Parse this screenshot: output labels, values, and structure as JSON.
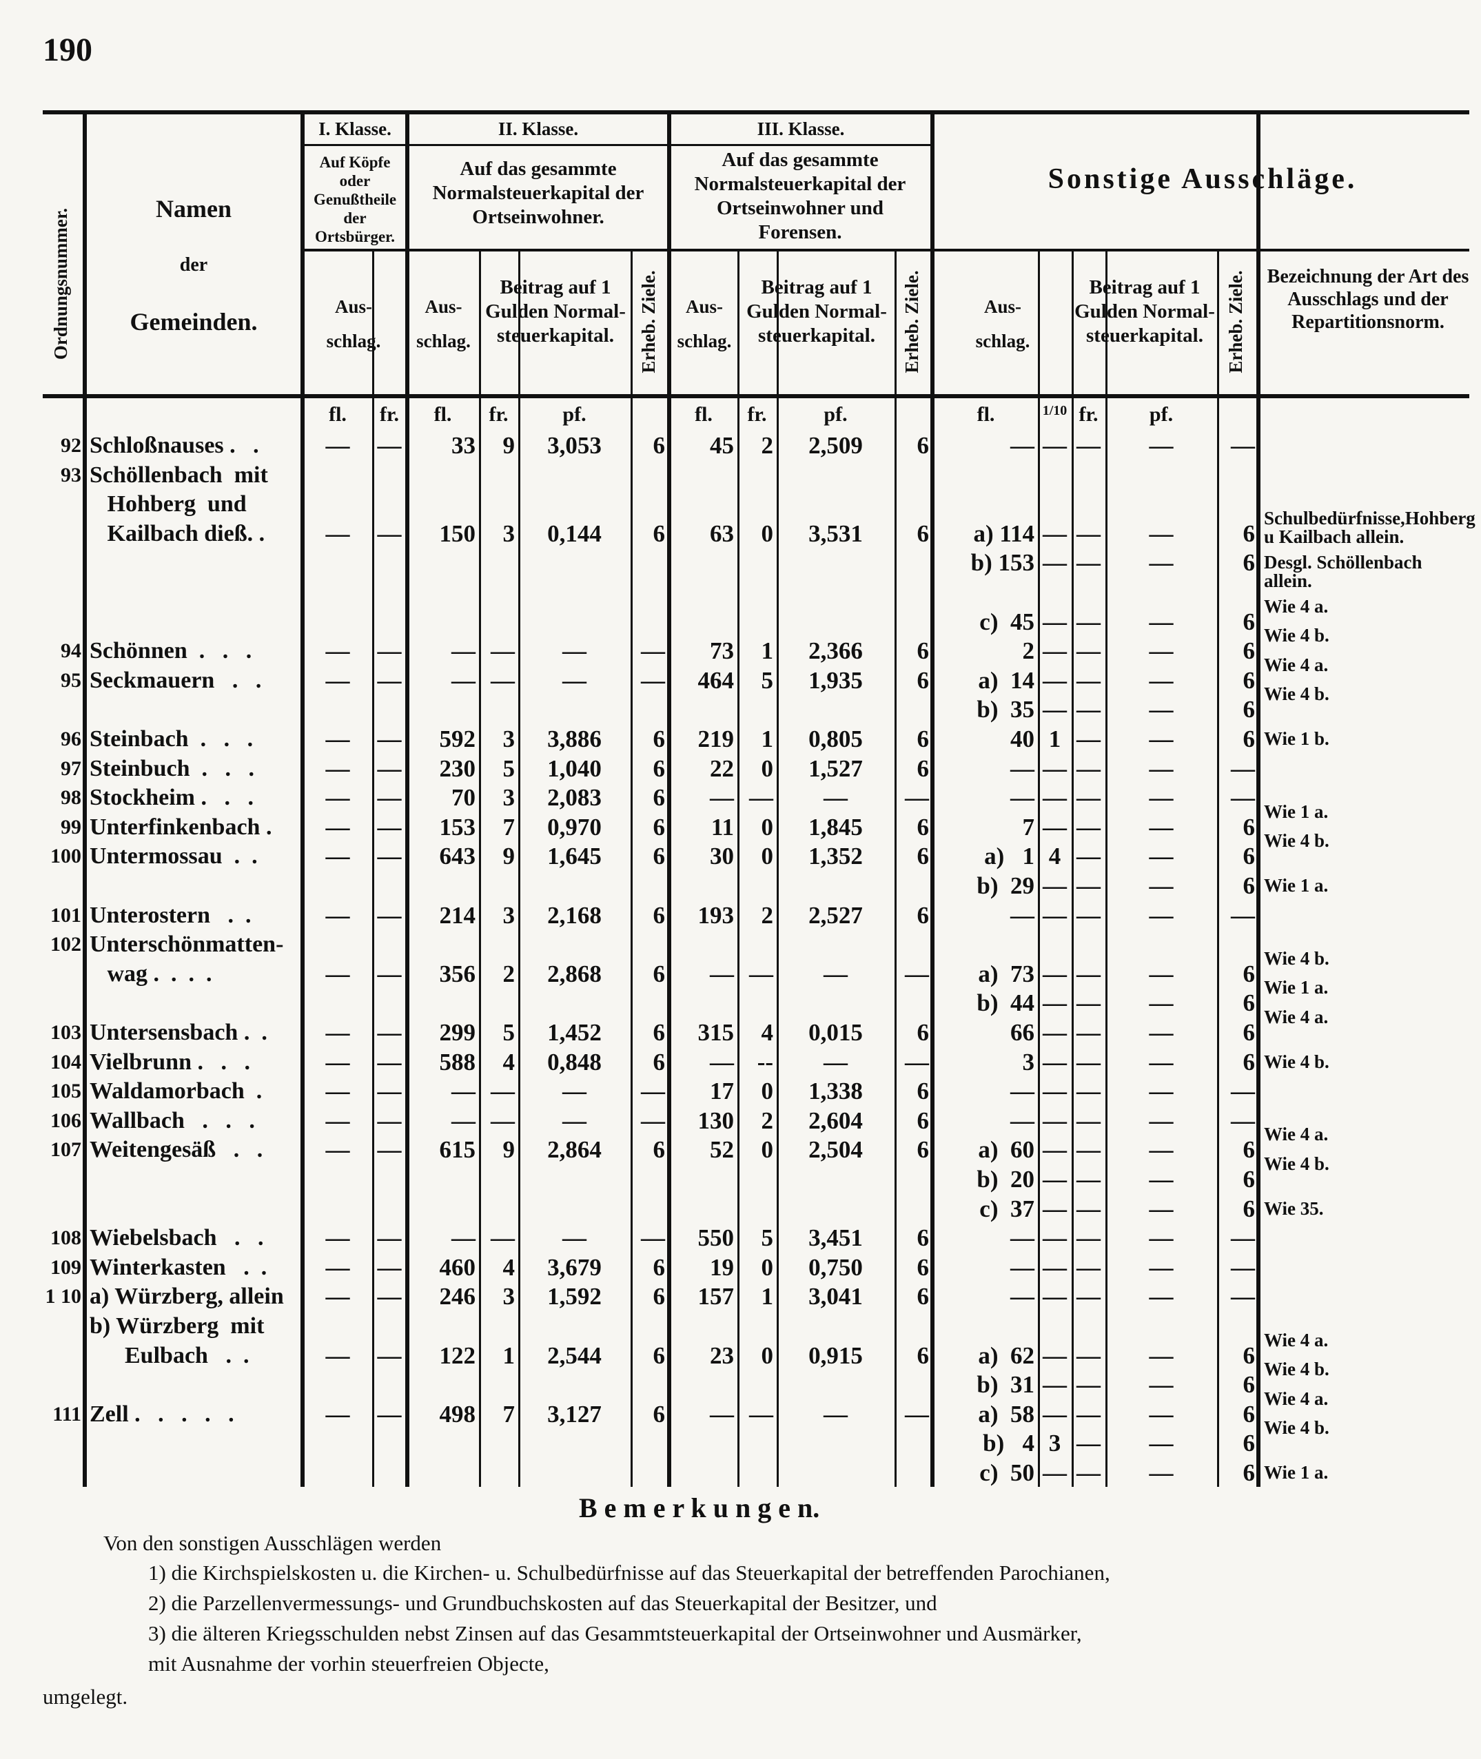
{
  "page_number": "190",
  "header": {
    "ordnungsnummer": "Ordnungsnummer.",
    "namen": [
      "Namen",
      "der",
      "Gemeinden."
    ],
    "class1": {
      "title": "I. Klasse.",
      "sub": "Auf Köpfe oder Genußtheile der Ortsbürger.",
      "ausschlag": "Aus-schlag."
    },
    "class2": {
      "title": "II. Klasse.",
      "sub": "Auf das gesammte Normalsteuerkapital der Ortseinwohner.",
      "ausschlag": "Aus-schlag.",
      "beitrag": "Beitrag auf 1 Gulden Normal-steuerkapital.",
      "ziele": "Erheb. Ziele."
    },
    "class3": {
      "title": "III. Klasse.",
      "sub": "Auf das gesammte Normalsteuerkapital der Ortseinwohner und Forensen.",
      "ausschlag": "Aus-schlag.",
      "beitrag": "Beitrag auf 1 Gulden Normal-steuerkapital.",
      "ziele": "Erheb. Ziele."
    },
    "sonstige": {
      "title": "Sonstige Ausschläge.",
      "ausschlag": "Aus-schlag.",
      "beitrag": "Beitrag auf 1 Gulden Normal-steuerkapital.",
      "ziele": "Erheb. Ziele.",
      "bezeichnung": "Bezeichnung der Art des Ausschlags und der Repartitionsnorm."
    },
    "units": {
      "c1fl": "fl.",
      "c1fr": "fr.",
      "c2fl": "fl.",
      "c2fr": "fr.",
      "c2pf": "pf.",
      "c3fl": "fl.",
      "c3fr": "fr.",
      "c3pf": "pf.",
      "sfl": "fl.",
      "s10": "1/10",
      "sfr": "fr.",
      "spf": "pf."
    }
  },
  "lines": [
    {
      "num": "92",
      "name": "Schloßnauses .   .",
      "c1fl": "—",
      "c1fr": "—",
      "c2fl": "33",
      "c2fr": "9",
      "c2pf": "3,053",
      "c2z": "6",
      "c3fl": "45",
      "c3fr": "2",
      "c3pf": "2,509",
      "c3z": "6",
      "sfl": "—",
      "s10": "—",
      "sfr": "—",
      "spf": "—",
      "sz": "—"
    },
    {
      "num": "93",
      "name": "Schöllenbach  mit"
    },
    {
      "name": "   Hohberg  und"
    },
    {
      "name": "   Kailbach dieß. .",
      "c1fl": "—",
      "c1fr": "—",
      "c2fl": "150",
      "c2fr": "3",
      "c2pf": "0,144",
      "c2z": "6",
      "c3fl": "63",
      "c3fr": "0",
      "c3pf": "3,531",
      "c3z": "6",
      "sfl": "a) 114",
      "s10": "—",
      "sfr": "—",
      "spf": "—",
      "sz": "6",
      "sdesc": "Schulbedürfnisse,Hohberg u Kailbach allein."
    },
    {
      "sfl": "b) 153",
      "s10": "—",
      "sfr": "—",
      "spf": "—",
      "sz": "6",
      "sdesc": "Desgl.   Schöllenbach allein."
    },
    {},
    {
      "sfl": "c)  45",
      "s10": "—",
      "sfr": "—",
      "spf": "—",
      "sz": "6",
      "sdesc": "Wie 4 a."
    },
    {
      "num": "94",
      "name": "Schönnen  .   .   .",
      "c1fl": "—",
      "c1fr": "—",
      "c2fl": "—",
      "c2fr": "—",
      "c2pf": "—",
      "c2z": "—",
      "c3fl": "73",
      "c3fr": "1",
      "c3pf": "2,366",
      "c3z": "6",
      "sfl": "2",
      "s10": "—",
      "sfr": "—",
      "spf": "—",
      "sz": "6",
      "sdesc": "Wie 4 b."
    },
    {
      "num": "95",
      "name": "Seckmauern   .   .",
      "c1fl": "—",
      "c1fr": "—",
      "c2fl": "—",
      "c2fr": "—",
      "c2pf": "—",
      "c2z": "—",
      "c3fl": "464",
      "c3fr": "5",
      "c3pf": "1,935",
      "c3z": "6",
      "sfl": "a)  14",
      "s10": "—",
      "sfr": "—",
      "spf": "—",
      "sz": "6",
      "sdesc": "Wie 4 a."
    },
    {
      "sfl": "b)  35",
      "s10": "—",
      "sfr": "—",
      "spf": "—",
      "sz": "6",
      "sdesc": "Wie 4 b."
    },
    {
      "num": "96",
      "name": "Steinbach  .   .   .",
      "c1fl": "—",
      "c1fr": "—",
      "c2fl": "592",
      "c2fr": "3",
      "c2pf": "3,886",
      "c2z": "6",
      "c3fl": "219",
      "c3fr": "1",
      "c3pf": "0,805",
      "c3z": "6",
      "sfl": "40",
      "s10": "1",
      "sfr": "—",
      "spf": "—",
      "sz": "6",
      "sdesc": "Wie 1 b."
    },
    {
      "num": "97",
      "name": "Steinbuch  .   .   .",
      "c1fl": "—",
      "c1fr": "—",
      "c2fl": "230",
      "c2fr": "5",
      "c2pf": "1,040",
      "c2z": "6",
      "c3fl": "22",
      "c3fr": "0",
      "c3pf": "1,527",
      "c3z": "6",
      "sfl": "—",
      "s10": "—",
      "sfr": "—",
      "spf": "—",
      "sz": "—"
    },
    {
      "num": "98",
      "name": "Stockheim .   .   .",
      "c1fl": "—",
      "c1fr": "—",
      "c2fl": "70",
      "c2fr": "3",
      "c2pf": "2,083",
      "c2z": "6",
      "c3fl": "—",
      "c3fr": "—",
      "c3pf": "—",
      "c3z": "—",
      "sfl": "—",
      "s10": "—",
      "sfr": "—",
      "spf": "—",
      "sz": "—"
    },
    {
      "num": "99",
      "name": "Unterfinkenbach .",
      "c1fl": "—",
      "c1fr": "—",
      "c2fl": "153",
      "c2fr": "7",
      "c2pf": "0,970",
      "c2z": "6",
      "c3fl": "11",
      "c3fr": "0",
      "c3pf": "1,845",
      "c3z": "6",
      "sfl": "7",
      "s10": "—",
      "sfr": "—",
      "spf": "—",
      "sz": "6",
      "sdesc": "Wie 1 a."
    },
    {
      "num": "100",
      "name": "Untermossau  .  .",
      "c1fl": "—",
      "c1fr": "—",
      "c2fl": "643",
      "c2fr": "9",
      "c2pf": "1,645",
      "c2z": "6",
      "c3fl": "30",
      "c3fr": "0",
      "c3pf": "1,352",
      "c3z": "6",
      "sfl": "a)   1",
      "s10": "4",
      "sfr": "—",
      "spf": "—",
      "sz": "6",
      "sdesc": "Wie 4 b."
    },
    {
      "sfl": "b)  29",
      "s10": "—",
      "sfr": "—",
      "spf": "—",
      "sz": "6",
      "sdesc": "Wie 1 a."
    },
    {
      "num": "101",
      "name": "Unterostern   .  .",
      "c1fl": "—",
      "c1fr": "—",
      "c2fl": "214",
      "c2fr": "3",
      "c2pf": "2,168",
      "c2z": "6",
      "c3fl": "193",
      "c3fr": "2",
      "c3pf": "2,527",
      "c3z": "6",
      "sfl": "—",
      "s10": "—",
      "sfr": "—",
      "spf": "—",
      "sz": "—"
    },
    {
      "num": "102",
      "name": "Unterschönmatten-"
    },
    {
      "name": "   wag .  .  .  .",
      "c1fl": "—",
      "c1fr": "—",
      "c2fl": "356",
      "c2fr": "2",
      "c2pf": "2,868",
      "c2z": "6",
      "c3fl": "—",
      "c3fr": "—",
      "c3pf": "—",
      "c3z": "—",
      "sfl": "a)  73",
      "s10": "—",
      "sfr": "—",
      "spf": "—",
      "sz": "6",
      "sdesc": "Wie 4 b."
    },
    {
      "sfl": "b)  44",
      "s10": "—",
      "sfr": "—",
      "spf": "—",
      "sz": "6",
      "sdesc": "Wie 1 a."
    },
    {
      "num": "103",
      "name": "Untersensbach .  .",
      "c1fl": "—",
      "c1fr": "—",
      "c2fl": "299",
      "c2fr": "5",
      "c2pf": "1,452",
      "c2z": "6",
      "c3fl": "315",
      "c3fr": "4",
      "c3pf": "0,015",
      "c3z": "6",
      "sfl": "66",
      "s10": "—",
      "sfr": "—",
      "spf": "—",
      "sz": "6",
      "sdesc": "Wie 4 a."
    },
    {
      "num": "104",
      "name": "Vielbrunn .   .   .",
      "c1fl": "—",
      "c1fr": "—",
      "c2fl": "588",
      "c2fr": "4",
      "c2pf": "0,848",
      "c2z": "6",
      "c3fl": "—",
      "c3fr": "--",
      "c3pf": "—",
      "c3z": "—",
      "sfl": "3",
      "s10": "—",
      "sfr": "—",
      "spf": "—",
      "sz": "6",
      "sdesc": "Wie 4 b."
    },
    {
      "num": "105",
      "name": "Waldamorbach  .",
      "c1fl": "—",
      "c1fr": "—",
      "c2fl": "—",
      "c2fr": "—",
      "c2pf": "—",
      "c2z": "—",
      "c3fl": "17",
      "c3fr": "0",
      "c3pf": "1,338",
      "c3z": "6",
      "sfl": "—",
      "s10": "—",
      "sfr": "—",
      "spf": "—",
      "sz": "—"
    },
    {
      "num": "106",
      "name": "Wallbach   .   .   .",
      "c1fl": "—",
      "c1fr": "—",
      "c2fl": "—",
      "c2fr": "—",
      "c2pf": "—",
      "c2z": "—",
      "c3fl": "130",
      "c3fr": "2",
      "c3pf": "2,604",
      "c3z": "6",
      "sfl": "—",
      "s10": "—",
      "sfr": "—",
      "spf": "—",
      "sz": "—"
    },
    {
      "num": "107",
      "name": "Weitengesäß   .   .",
      "c1fl": "—",
      "c1fr": "—",
      "c2fl": "615",
      "c2fr": "9",
      "c2pf": "2,864",
      "c2z": "6",
      "c3fl": "52",
      "c3fr": "0",
      "c3pf": "2,504",
      "c3z": "6",
      "sfl": "a)  60",
      "s10": "—",
      "sfr": "—",
      "spf": "—",
      "sz": "6",
      "sdesc": "Wie 4 a."
    },
    {
      "sfl": "b)  20",
      "s10": "—",
      "sfr": "—",
      "spf": "—",
      "sz": "6",
      "sdesc": "Wie 4 b."
    },
    {
      "sfl": "c)  37",
      "s10": "—",
      "sfr": "—",
      "spf": "—",
      "sz": "6",
      "sdesc": "Wie 35."
    },
    {
      "num": "108",
      "name": "Wiebelsbach   .   .",
      "c1fl": "—",
      "c1fr": "—",
      "c2fl": "—",
      "c2fr": "—",
      "c2pf": "—",
      "c2z": "—",
      "c3fl": "550",
      "c3fr": "5",
      "c3pf": "3,451",
      "c3z": "6",
      "sfl": "—",
      "s10": "—",
      "sfr": "—",
      "spf": "—",
      "sz": "—"
    },
    {
      "num": "109",
      "name": "Winterkasten   .  .",
      "c1fl": "—",
      "c1fr": "—",
      "c2fl": "460",
      "c2fr": "4",
      "c2pf": "3,679",
      "c2z": "6",
      "c3fl": "19",
      "c3fr": "0",
      "c3pf": "0,750",
      "c3z": "6",
      "sfl": "—",
      "s10": "—",
      "sfr": "—",
      "spf": "—",
      "sz": "—"
    },
    {
      "num": "1 10",
      "name": "a) Würzberg, allein",
      "c1fl": "—",
      "c1fr": "—",
      "c2fl": "246",
      "c2fr": "3",
      "c2pf": "1,592",
      "c2z": "6",
      "c3fl": "157",
      "c3fr": "1",
      "c3pf": "3,041",
      "c3z": "6",
      "sfl": "—",
      "s10": "—",
      "sfr": "—",
      "spf": "—",
      "sz": "—"
    },
    {
      "name": "b) Würzberg  mit"
    },
    {
      "name": "      Eulbach   .  .",
      "c1fl": "—",
      "c1fr": "—",
      "c2fl": "122",
      "c2fr": "1",
      "c2pf": "2,544",
      "c2z": "6",
      "c3fl": "23",
      "c3fr": "0",
      "c3pf": "0,915",
      "c3z": "6",
      "sfl": "a)  62",
      "s10": "—",
      "sfr": "—",
      "spf": "—",
      "sz": "6",
      "sdesc": "Wie 4 a."
    },
    {
      "sfl": "b)  31",
      "s10": "—",
      "sfr": "—",
      "spf": "—",
      "sz": "6",
      "sdesc": "Wie 4 b."
    },
    {
      "num": "111",
      "name": "Zell .   .   .   .   .",
      "c1fl": "—",
      "c1fr": "—",
      "c2fl": "498",
      "c2fr": "7",
      "c2pf": "3,127",
      "c2z": "6",
      "c3fl": "—",
      "c3fr": "—",
      "c3pf": "—",
      "c3z": "—",
      "sfl": "a)  58",
      "s10": "—",
      "sfr": "—",
      "spf": "—",
      "sz": "6",
      "sdesc": "Wie 4 a."
    },
    {
      "sfl": "b)   4",
      "s10": "3",
      "sfr": "—",
      "spf": "—",
      "sz": "6",
      "sdesc": "Wie 4 b."
    },
    {
      "sfl": "c)  50",
      "s10": "—",
      "sfr": "—",
      "spf": "—",
      "sz": "6",
      "sdesc": "Wie 1 a."
    }
  ],
  "remarks": {
    "title": "B e m e r k u n g e n.",
    "intro": "Von den sonstigen Ausschlägen werden",
    "items": [
      "1)  die Kirchspielskosten  u. die Kirchen- u. Schulbedürfnisse auf das Steuerkapital der betreffenden Parochianen,",
      "2)  die Parzellenvermessungs- und Grundbuchskosten auf das Steuerkapital der Besitzer,  und",
      "3)  die älteren Kriegsschulden  nebst Zinsen auf das Gesammtsteuerkapital der Ortseinwohner und Ausmärker,",
      "     mit Ausnahme der vorhin steuerfreien Objecte,"
    ],
    "closing": "umgelegt."
  }
}
